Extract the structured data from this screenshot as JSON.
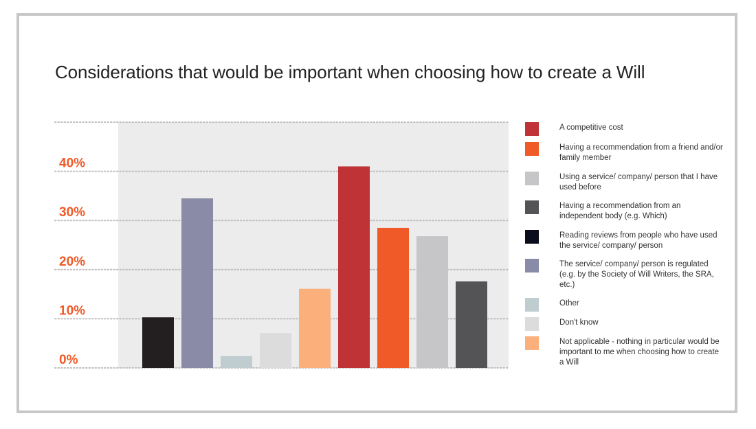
{
  "title": "Considerations that would be important when choosing how to create a Will",
  "chart_data": {
    "type": "bar",
    "title": "Considerations that would be important when choosing how to create a Will",
    "xlabel": "",
    "ylabel": "",
    "ylim": [
      0,
      50
    ],
    "yticks": [
      0,
      10,
      20,
      30,
      40
    ],
    "ytick_labels": [
      "0%",
      "10%",
      "20%",
      "30%",
      "40%"
    ],
    "grid": "dotted horizontal",
    "legend_position": "right",
    "tick_color": "#f05a28",
    "plot_background": "#ececec",
    "categories": [
      "Reading reviews from people who have used the service/ company/ person",
      "The service/ company/ person is regulated (e.g. by the Society of Will Writers, the SRA, etc.)",
      "Other",
      "Don't know",
      "Not applicable - nothing in particular would be important to me when choosing how to create a Will",
      "A competitive cost",
      "Having a recommendation from a friend and/or family member",
      "Using a service/ company/ person that I have used before",
      "Having a recommendation from an independent body (e.g. Which)"
    ],
    "values": [
      10.3,
      34.5,
      2.4,
      7.1,
      16.1,
      41.0,
      28.5,
      26.8,
      17.6
    ],
    "colors": [
      "#231f20",
      "#8a8ba6",
      "#bfcdd0",
      "#dcdcdc",
      "#fbb07b",
      "#bf3236",
      "#f05a28",
      "#c6c6c8",
      "#545456"
    ]
  },
  "legend": [
    {
      "label": "A competitive cost",
      "color": "#bf3236"
    },
    {
      "label": "Having a recommendation from a friend and/or family member",
      "color": "#f05a28"
    },
    {
      "label": "Using a service/ company/ person that I have used before",
      "color": "#c6c6c8"
    },
    {
      "label": "Having a recommendation from an independent body (e.g. Which)",
      "color": "#545456"
    },
    {
      "label": "Reading reviews from people who have used the service/ company/ person",
      "color": "#0b0c1c"
    },
    {
      "label": "The service/ company/ person is regulated (e.g. by the Society of Will Writers, the SRA, etc.)",
      "color": "#8a8ba6"
    },
    {
      "label": "Other",
      "color": "#bfcdd0"
    },
    {
      "label": "Don't know",
      "color": "#dcdcdc"
    },
    {
      "label": "Not applicable - nothing in particular would be important to me when choosing how to create a Will",
      "color": "#fbb07b"
    }
  ]
}
